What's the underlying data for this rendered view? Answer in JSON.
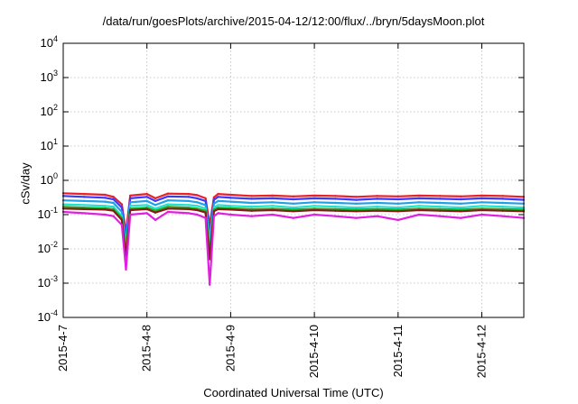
{
  "chart_data": {
    "type": "line",
    "title": "/data/run/goesPlots/archive/2015-04-12/12:00/flux/../bryn/5daysMoon.plot",
    "xlabel": "Coordinated Universal Time (UTC)",
    "ylabel": "cSv/day",
    "yscale": "log",
    "ylim": [
      0.0001,
      10000
    ],
    "yticks": [
      {
        "value": 0.0001,
        "base": "10",
        "exp": "-4"
      },
      {
        "value": 0.001,
        "base": "10",
        "exp": "-3"
      },
      {
        "value": 0.01,
        "base": "10",
        "exp": "-2"
      },
      {
        "value": 0.1,
        "base": "10",
        "exp": "-1"
      },
      {
        "value": 1,
        "base": "10",
        "exp": "0"
      },
      {
        "value": 10,
        "base": "10",
        "exp": "1"
      },
      {
        "value": 100,
        "base": "10",
        "exp": "2"
      },
      {
        "value": 1000,
        "base": "10",
        "exp": "3"
      },
      {
        "value": 10000,
        "base": "10",
        "exp": "4"
      }
    ],
    "xlim": [
      "2015-04-07T00:00",
      "2015-04-12T12:00"
    ],
    "xticks": [
      "2015-4-7",
      "2015-4-8",
      "2015-4-9",
      "2015-4-10",
      "2015-4-11",
      "2015-4-12"
    ],
    "grid": true,
    "legend": "none",
    "x_days": [
      0,
      0.25,
      0.5,
      0.6,
      0.7,
      0.75,
      0.8,
      1.0,
      1.1,
      1.25,
      1.5,
      1.6,
      1.7,
      1.75,
      1.8,
      1.85,
      2.0,
      2.25,
      2.5,
      2.75,
      3.0,
      3.25,
      3.5,
      3.75,
      4.0,
      4.25,
      4.5,
      4.75,
      5.0,
      5.25,
      5.5
    ],
    "series": [
      {
        "color": "#e8202a",
        "values": [
          0.42,
          0.4,
          0.38,
          0.33,
          0.2,
          0.03,
          0.36,
          0.4,
          0.3,
          0.41,
          0.4,
          0.37,
          0.3,
          0.05,
          0.32,
          0.4,
          0.38,
          0.35,
          0.36,
          0.34,
          0.36,
          0.35,
          0.33,
          0.35,
          0.34,
          0.36,
          0.35,
          0.34,
          0.36,
          0.35,
          0.33
        ]
      },
      {
        "color": "#3a3aff",
        "values": [
          0.35,
          0.33,
          0.31,
          0.28,
          0.16,
          0.02,
          0.3,
          0.33,
          0.25,
          0.34,
          0.33,
          0.3,
          0.25,
          0.03,
          0.27,
          0.33,
          0.31,
          0.29,
          0.3,
          0.28,
          0.3,
          0.29,
          0.27,
          0.29,
          0.28,
          0.3,
          0.29,
          0.28,
          0.3,
          0.29,
          0.27
        ]
      },
      {
        "color": "#1fa0e8",
        "values": [
          0.26,
          0.25,
          0.24,
          0.22,
          0.12,
          0.015,
          0.23,
          0.25,
          0.19,
          0.26,
          0.25,
          0.23,
          0.19,
          0.02,
          0.21,
          0.25,
          0.24,
          0.22,
          0.23,
          0.21,
          0.23,
          0.22,
          0.21,
          0.22,
          0.21,
          0.23,
          0.22,
          0.21,
          0.23,
          0.22,
          0.21
        ]
      },
      {
        "color": "#20e0d0",
        "values": [
          0.2,
          0.19,
          0.18,
          0.17,
          0.09,
          0.01,
          0.18,
          0.19,
          0.15,
          0.2,
          0.19,
          0.18,
          0.15,
          0.012,
          0.16,
          0.19,
          0.18,
          0.17,
          0.18,
          0.16,
          0.18,
          0.17,
          0.16,
          0.17,
          0.16,
          0.18,
          0.17,
          0.16,
          0.18,
          0.17,
          0.16
        ]
      },
      {
        "color": "#20b020",
        "values": [
          0.17,
          0.16,
          0.155,
          0.145,
          0.08,
          0.008,
          0.15,
          0.16,
          0.13,
          0.17,
          0.16,
          0.15,
          0.13,
          0.008,
          0.14,
          0.16,
          0.155,
          0.145,
          0.15,
          0.14,
          0.15,
          0.145,
          0.14,
          0.145,
          0.14,
          0.15,
          0.145,
          0.14,
          0.15,
          0.145,
          0.14
        ]
      },
      {
        "color": "#8a1818",
        "values": [
          0.15,
          0.145,
          0.14,
          0.13,
          0.07,
          0.006,
          0.135,
          0.145,
          0.115,
          0.15,
          0.145,
          0.135,
          0.115,
          0.005,
          0.125,
          0.145,
          0.14,
          0.13,
          0.135,
          0.125,
          0.135,
          0.13,
          0.125,
          0.13,
          0.125,
          0.135,
          0.13,
          0.125,
          0.135,
          0.13,
          0.125
        ]
      },
      {
        "color": "#e020e0",
        "values": [
          0.12,
          0.11,
          0.1,
          0.09,
          0.05,
          0.0025,
          0.1,
          0.11,
          0.07,
          0.12,
          0.11,
          0.1,
          0.08,
          0.0009,
          0.09,
          0.11,
          0.1,
          0.09,
          0.1,
          0.08,
          0.1,
          0.09,
          0.08,
          0.09,
          0.07,
          0.1,
          0.09,
          0.08,
          0.1,
          0.09,
          0.08
        ]
      }
    ]
  }
}
